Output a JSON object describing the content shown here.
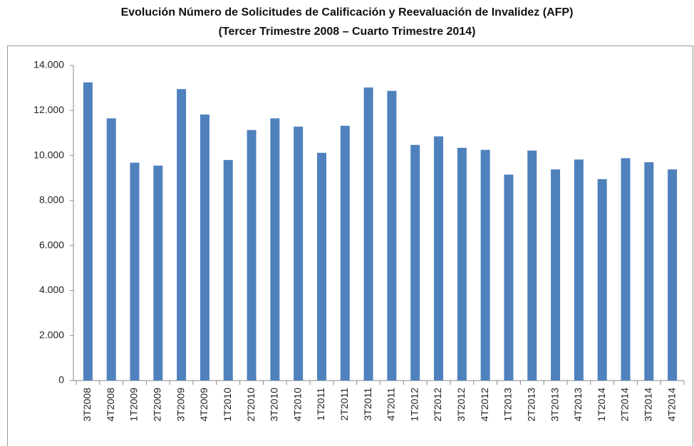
{
  "chart_data": {
    "type": "bar",
    "title": "Evolución Número de Solicitudes de Calificación y Reevaluación de Invalidez (AFP)",
    "subtitle": "(Tercer Trimestre 2008 – Cuarto Trimestre 2014)",
    "categories": [
      "3T2008",
      "4T2008",
      "1T2009",
      "2T2009",
      "3T2009",
      "4T2009",
      "1T2010",
      "2T2010",
      "3T2010",
      "4T2010",
      "1T2011",
      "2T2011",
      "3T2011",
      "4T2011",
      "1T2012",
      "2T2012",
      "3T2012",
      "4T2012",
      "1T2013",
      "2T2013",
      "3T2013",
      "4T2013",
      "1T2014",
      "2T2014",
      "3T2014",
      "4T2014"
    ],
    "values": [
      13250,
      11650,
      9680,
      9550,
      12950,
      11820,
      9800,
      11130,
      11650,
      11280,
      10120,
      11320,
      13020,
      12870,
      10470,
      10850,
      10340,
      10250,
      9150,
      10220,
      9380,
      9820,
      8950,
      9880,
      9700,
      9380
    ],
    "color": "#4f81bd",
    "ylim": [
      0,
      14000
    ],
    "yticks": [
      0,
      {
        "value": 2000,
        "label": "2.000"
      },
      {
        "value": 4000,
        "label": "4.000"
      },
      {
        "value": 6000,
        "label": "6.000"
      },
      {
        "value": 8000,
        "label": "8.000"
      },
      {
        "value": 10000,
        "label": "10.000"
      },
      {
        "value": 12000,
        "label": "12.000"
      },
      {
        "value": 14000,
        "label": "14.000"
      }
    ],
    "grid": false
  }
}
